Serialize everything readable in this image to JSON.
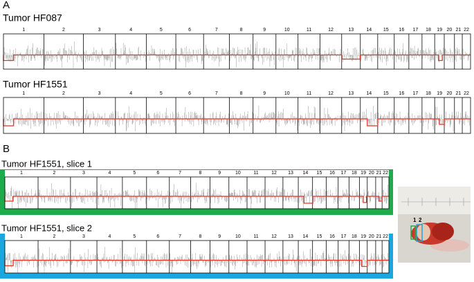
{
  "panel_labels": [
    "A",
    "B"
  ],
  "chromosomes": [
    "1",
    "2",
    "3",
    "4",
    "5",
    "6",
    "7",
    "8",
    "9",
    "10",
    "11",
    "12",
    "13",
    "14",
    "15",
    "16",
    "17",
    "18",
    "19",
    "20",
    "21",
    "22"
  ],
  "tracks": [
    {
      "title": "Tumor HF087"
    },
    {
      "title": "Tumor HF1551"
    },
    {
      "title": "Tumor HF1551, slice 1"
    },
    {
      "title": "Tumor HF1551, slice 2"
    }
  ],
  "photo": {
    "labels": [
      "1",
      "2"
    ]
  }
}
